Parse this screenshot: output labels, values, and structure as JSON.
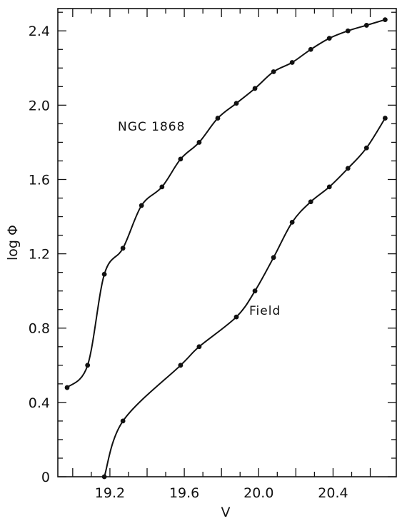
{
  "chart_data": {
    "type": "line",
    "xlabel": "V",
    "ylabel": "log Φ",
    "xlim": [
      18.92,
      20.74
    ],
    "ylim": [
      0,
      2.52
    ],
    "xticks": [
      "19.2",
      "19.6",
      "20.0",
      "20.4"
    ],
    "yticks": [
      "0",
      "0.4",
      "0.8",
      "1.2",
      "1.6",
      "2.0",
      "2.4"
    ],
    "grid": false,
    "series": [
      {
        "name": "NGC 1868",
        "x": [
          18.97,
          19.08,
          19.17,
          19.27,
          19.37,
          19.48,
          19.58,
          19.68,
          19.78,
          19.88,
          19.98,
          20.08,
          20.18,
          20.28,
          20.38,
          20.48,
          20.58,
          20.68
        ],
        "y": [
          0.48,
          0.6,
          1.09,
          1.23,
          1.46,
          1.56,
          1.71,
          1.8,
          1.93,
          2.01,
          2.09,
          2.18,
          2.23,
          2.3,
          2.36,
          2.4,
          2.43,
          2.46
        ]
      },
      {
        "name": "Field",
        "x": [
          19.17,
          19.27,
          19.58,
          19.68,
          19.88,
          19.98,
          20.08,
          20.18,
          20.28,
          20.38,
          20.48,
          20.58,
          20.68
        ],
        "y": [
          0.0,
          0.3,
          0.6,
          0.7,
          0.86,
          1.0,
          1.18,
          1.37,
          1.48,
          1.56,
          1.66,
          1.77,
          1.93
        ]
      }
    ]
  }
}
